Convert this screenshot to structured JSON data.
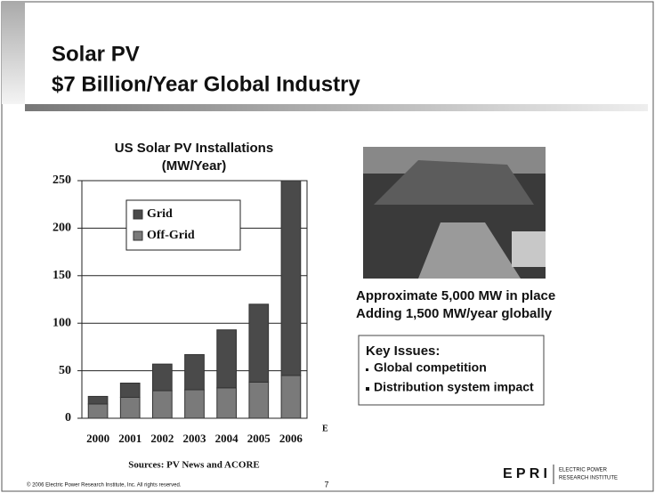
{
  "slide": {
    "title_lines": [
      "Solar PV",
      "$7 Billion/Year Global Industry"
    ],
    "caption_lines": [
      "Approximate 5,000 MW in place",
      "Adding 1,500 MW/year globally"
    ],
    "key_issues": {
      "heading": "Key Issues:",
      "items": [
        "Global competition",
        "Distribution system impact"
      ]
    },
    "sources": "Sources: PV News and ACORE",
    "copyright": "© 2006 Electric Power Research Institute, Inc. All rights reserved.",
    "page_number": "7",
    "logo": {
      "mark": "EPRI",
      "text_lines": [
        "ELECTRIC POWER",
        "RESEARCH INSTITUTE"
      ]
    }
  },
  "chart_data": {
    "type": "stacked-bar",
    "title": "US Solar PV Installations",
    "subtitle": "(MW/Year)",
    "categories": [
      "2000",
      "2001",
      "2002",
      "2003",
      "2004",
      "2005",
      "2006"
    ],
    "annotation": "E",
    "series": [
      {
        "name": "Grid",
        "color": "#4a4a4a",
        "values": [
          8,
          15,
          28,
          37,
          61,
          82,
          205
        ]
      },
      {
        "name": "Off-Grid",
        "color": "#7a7a7a",
        "values": [
          15,
          22,
          29,
          30,
          32,
          38,
          45
        ]
      }
    ],
    "ylim": [
      0,
      250
    ],
    "yticks": [
      0,
      50,
      100,
      150,
      200,
      250
    ],
    "grid": true,
    "legend": "upper-left"
  }
}
